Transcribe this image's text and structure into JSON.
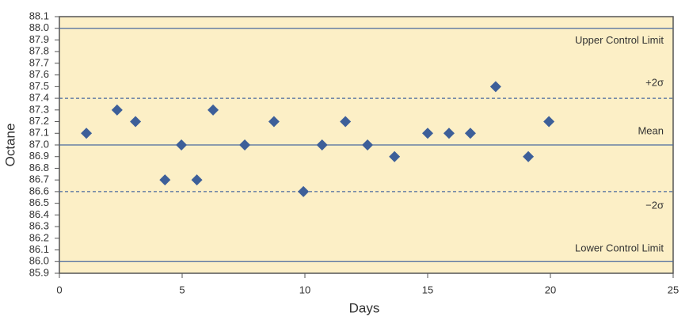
{
  "chart_data": {
    "type": "scatter",
    "x_label": "Days",
    "y_label": "Octane",
    "x": [
      1.1,
      2.35,
      3.1,
      4.3,
      4.97,
      5.6,
      6.26,
      7.55,
      8.74,
      9.94,
      10.7,
      11.65,
      12.55,
      13.65,
      15.0,
      15.87,
      16.74,
      17.77,
      19.1,
      19.94
    ],
    "values": [
      87.1,
      87.3,
      87.2,
      86.7,
      87.0,
      86.7,
      87.3,
      87.0,
      87.2,
      86.6,
      87.0,
      87.2,
      87.0,
      86.9,
      87.1,
      87.1,
      87.1,
      87.5,
      86.9,
      87.2
    ],
    "color": "#3d5f99",
    "xlim": [
      0,
      25
    ],
    "xticks": [
      0,
      5,
      10,
      15,
      20,
      25
    ],
    "ylim": [
      85.9,
      88.1
    ],
    "yticks": [
      85.9,
      {
        "value": 86,
        "label": "86.0"
      },
      86.1,
      86.2,
      86.3,
      86.4,
      86.5,
      86.6,
      86.7,
      86.8,
      86.9,
      {
        "value": 87,
        "label": "87.0"
      },
      87.1,
      87.2,
      87.3,
      87.4,
      87.5,
      87.6,
      87.7,
      87.8,
      87.9,
      {
        "value": 88,
        "label": "88.0"
      },
      88.1
    ],
    "reference_lines": [
      {
        "label": "Upper Control Limit",
        "value": 88.0,
        "style": "solid"
      },
      {
        "label": "+2σ",
        "value": 87.4,
        "style": "dashed"
      },
      {
        "label": "Mean",
        "value": 87.0,
        "style": "solid"
      },
      {
        "label": "−2σ",
        "value": 86.6,
        "style": "dashed"
      },
      {
        "label": "Lower Control Limit",
        "value": 86.0,
        "style": "solid"
      }
    ],
    "line_color": "#4a6a9e",
    "background": "#fcefc6"
  }
}
